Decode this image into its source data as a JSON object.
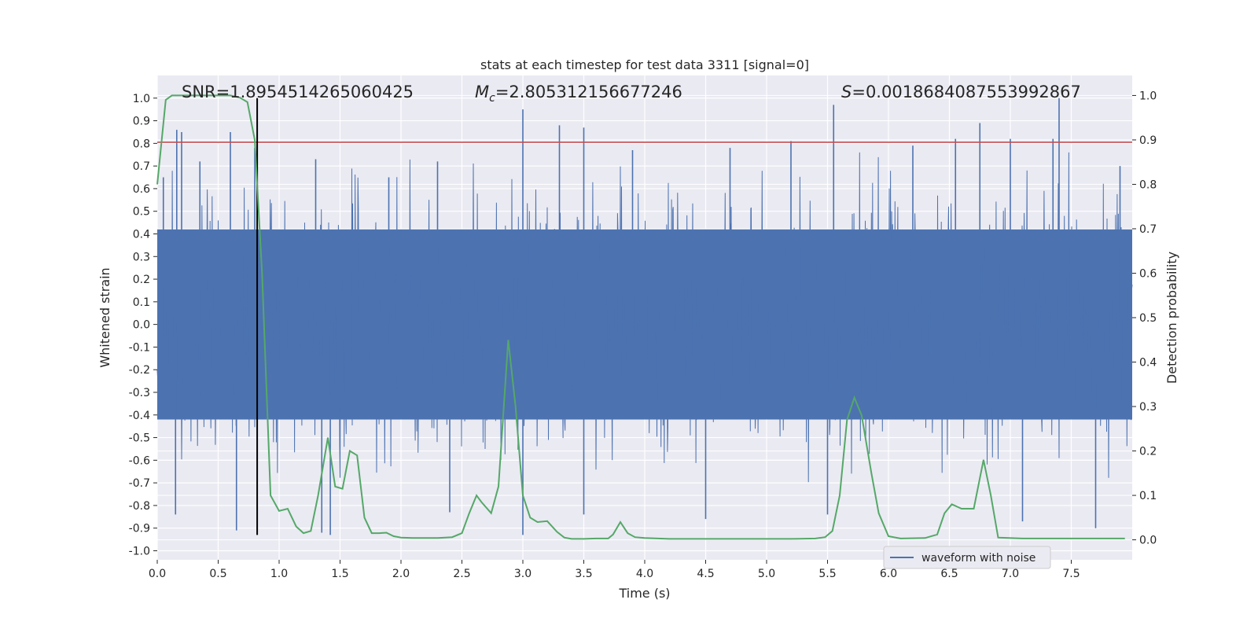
{
  "chart_data": {
    "type": "line",
    "title": "stats at each timestep for test data 3311 [signal=0]",
    "xlabel": "Time (s)",
    "ylabel": "Whitened strain",
    "y2label": "Detection probability",
    "xlim": [
      0.0,
      8.0
    ],
    "ylim": [
      -1.04,
      1.1
    ],
    "y2lim": [
      -0.045,
      1.045
    ],
    "xticks": [
      "0.0",
      "0.5",
      "1.0",
      "1.5",
      "2.0",
      "2.5",
      "3.0",
      "3.5",
      "4.0",
      "4.5",
      "5.0",
      "5.5",
      "6.0",
      "6.5",
      "7.0",
      "7.5"
    ],
    "yticks": [
      "1.0",
      "0.9",
      "0.8",
      "0.7",
      "0.6",
      "0.5",
      "0.4",
      "0.3",
      "0.2",
      "0.1",
      "0.0",
      "-0.1",
      "-0.2",
      "-0.3",
      "-0.4",
      "-0.5",
      "-0.6",
      "-0.7",
      "-0.8",
      "-0.9",
      "-1.0"
    ],
    "y2ticks": [
      "1.0",
      "0.9",
      "0.8",
      "0.7",
      "0.6",
      "0.5",
      "0.4",
      "0.3",
      "0.2",
      "0.1",
      "0.0"
    ],
    "annotations": {
      "snr": "SNR=1.8954514265060425",
      "mc_symbol": "M",
      "mc_sub": "c",
      "mc_value": "=2.805312156677246",
      "s_symbol": "S",
      "s_value": "=0.0018684087553992867"
    },
    "threshold_y": 0.805,
    "marker_x": 0.82,
    "marker_y_range": [
      -0.93,
      1.0
    ],
    "legend": [
      {
        "label": "waveform with noise",
        "color": "#4c72b0"
      }
    ],
    "series": [
      {
        "name": "waveform with noise",
        "axis": "left",
        "color": "#4c72b0",
        "note": "dense noise band; values summarised as envelope peaks",
        "band": [
          -0.42,
          0.42
        ],
        "upper_peaks": [
          {
            "x": 0.05,
            "y": 0.65
          },
          {
            "x": 0.16,
            "y": 0.86
          },
          {
            "x": 0.2,
            "y": 0.85
          },
          {
            "x": 0.35,
            "y": 0.72
          },
          {
            "x": 0.6,
            "y": 0.85
          },
          {
            "x": 0.8,
            "y": 0.78
          },
          {
            "x": 1.3,
            "y": 0.73
          },
          {
            "x": 1.9,
            "y": 0.65
          },
          {
            "x": 2.3,
            "y": 0.72
          },
          {
            "x": 3.0,
            "y": 0.95
          },
          {
            "x": 3.3,
            "y": 0.88
          },
          {
            "x": 3.5,
            "y": 0.87
          },
          {
            "x": 3.9,
            "y": 0.77
          },
          {
            "x": 4.7,
            "y": 0.78
          },
          {
            "x": 5.2,
            "y": 0.81
          },
          {
            "x": 5.55,
            "y": 0.97
          },
          {
            "x": 6.2,
            "y": 0.79
          },
          {
            "x": 6.55,
            "y": 0.82
          },
          {
            "x": 6.75,
            "y": 0.89
          },
          {
            "x": 7.0,
            "y": 0.82
          },
          {
            "x": 7.35,
            "y": 0.82
          },
          {
            "x": 7.4,
            "y": 1.0
          },
          {
            "x": 7.9,
            "y": 0.7
          }
        ],
        "lower_peaks": [
          {
            "x": 0.15,
            "y": -0.84
          },
          {
            "x": 0.65,
            "y": -0.91
          },
          {
            "x": 1.35,
            "y": -0.92
          },
          {
            "x": 1.42,
            "y": -0.93
          },
          {
            "x": 2.4,
            "y": -0.83
          },
          {
            "x": 3.0,
            "y": -0.93
          },
          {
            "x": 3.5,
            "y": -0.84
          },
          {
            "x": 4.5,
            "y": -0.86
          },
          {
            "x": 5.5,
            "y": -0.84
          },
          {
            "x": 7.1,
            "y": -0.87
          },
          {
            "x": 7.7,
            "y": -0.9
          }
        ]
      },
      {
        "name": "detection probability",
        "axis": "right",
        "color": "#55a868",
        "x": [
          0.0,
          0.07,
          0.12,
          0.2,
          0.3,
          0.4,
          0.5,
          0.6,
          0.68,
          0.74,
          0.8,
          0.86,
          0.93,
          1.0,
          1.07,
          1.14,
          1.2,
          1.26,
          1.32,
          1.4,
          1.46,
          1.52,
          1.58,
          1.64,
          1.7,
          1.76,
          1.82,
          1.88,
          1.94,
          2.0,
          2.1,
          2.2,
          2.3,
          2.42,
          2.5,
          2.56,
          2.62,
          2.66,
          2.74,
          2.8,
          2.88,
          2.94,
          3.0,
          3.06,
          3.12,
          3.2,
          3.28,
          3.34,
          3.4,
          3.5,
          3.6,
          3.7,
          3.74,
          3.8,
          3.86,
          3.92,
          4.0,
          4.2,
          4.4,
          4.6,
          4.8,
          5.0,
          5.2,
          5.4,
          5.48,
          5.54,
          5.6,
          5.66,
          5.72,
          5.78,
          5.86,
          5.92,
          6.0,
          6.1,
          6.3,
          6.4,
          6.46,
          6.52,
          6.6,
          6.7,
          6.78,
          6.84,
          6.9,
          7.1,
          7.3,
          7.5,
          7.7,
          7.94
        ],
        "y": [
          0.8,
          0.99,
          1.0,
          1.0,
          1.0,
          1.0,
          1.0,
          1.0,
          0.995,
          0.985,
          0.9,
          0.6,
          0.1,
          0.065,
          0.07,
          0.03,
          0.015,
          0.02,
          0.1,
          0.23,
          0.12,
          0.115,
          0.2,
          0.19,
          0.05,
          0.015,
          0.015,
          0.016,
          0.008,
          0.005,
          0.004,
          0.004,
          0.004,
          0.006,
          0.015,
          0.06,
          0.1,
          0.085,
          0.06,
          0.12,
          0.45,
          0.3,
          0.1,
          0.05,
          0.04,
          0.042,
          0.018,
          0.005,
          0.002,
          0.002,
          0.003,
          0.003,
          0.012,
          0.04,
          0.015,
          0.006,
          0.004,
          0.002,
          0.002,
          0.002,
          0.002,
          0.002,
          0.002,
          0.003,
          0.006,
          0.02,
          0.1,
          0.27,
          0.32,
          0.28,
          0.15,
          0.06,
          0.008,
          0.003,
          0.004,
          0.012,
          0.06,
          0.08,
          0.07,
          0.07,
          0.18,
          0.1,
          0.005,
          0.003,
          0.003,
          0.003,
          0.003,
          0.003
        ]
      },
      {
        "name": "threshold",
        "axis": "left",
        "color": "#c44e52",
        "y": 0.805
      }
    ]
  }
}
